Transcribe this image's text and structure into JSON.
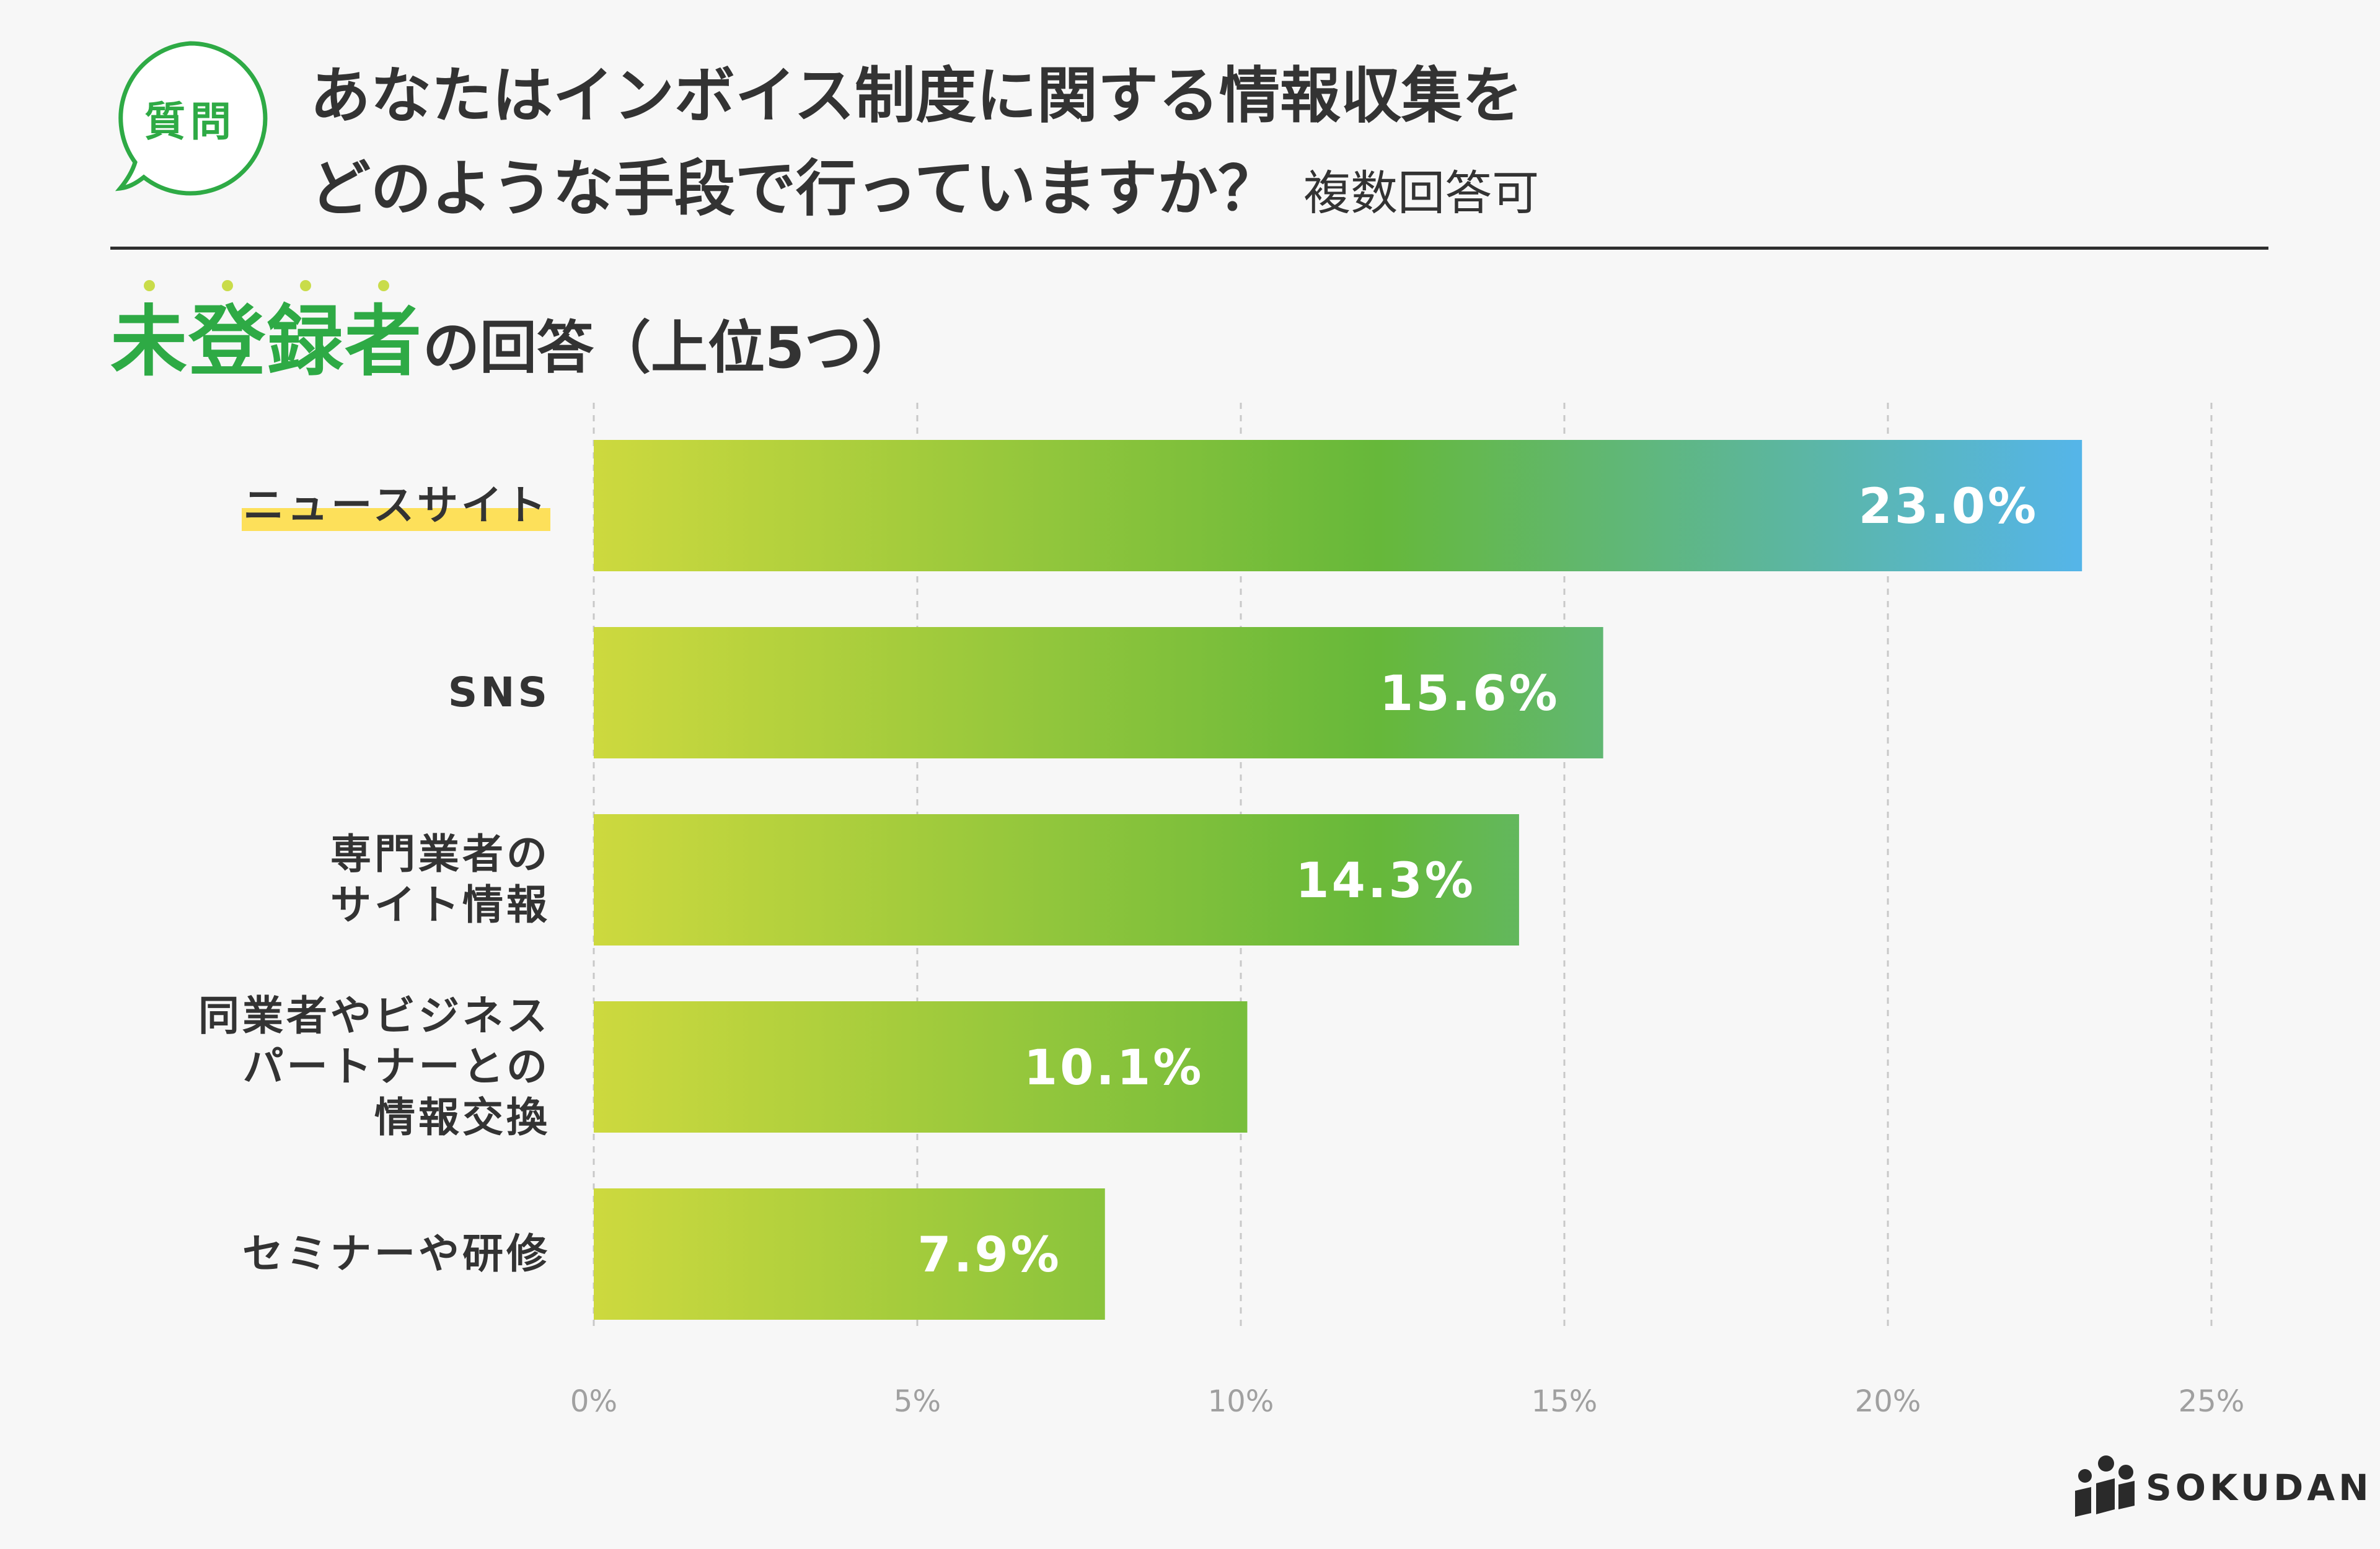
{
  "colors": {
    "accent_green": "#2eaa45",
    "text_dark": "#333333",
    "highlight": "#fde05a",
    "gradient_start": "#cdd93e",
    "gradient_mid": "#66b83a",
    "gradient_end": "#55b5e8"
  },
  "badge": {
    "text": "質問",
    "icon": "speech-bubble-icon"
  },
  "question": {
    "line1": "あなたはインボイス制度に関する情報収集を",
    "line2": "どのような手段で行っていますか？",
    "note": "複数回答可"
  },
  "subtitle": {
    "emphasis": "未登録者",
    "rest": "の回答（上位5つ）"
  },
  "chart_data": {
    "type": "bar",
    "orientation": "horizontal",
    "categories": [
      "ニュースサイト",
      "SNS",
      "専門業者の\nサイト情報",
      "同業者やビジネス\nパートナーとの\n情報交換",
      "セミナーや研修"
    ],
    "values": [
      23.0,
      15.6,
      14.3,
      10.1,
      7.9
    ],
    "value_labels": [
      "23.0%",
      "15.6%",
      "14.3%",
      "10.1%",
      "7.9%"
    ],
    "highlighted_category": "ニュースサイト",
    "x_ticks": [
      0,
      5,
      10,
      15,
      20,
      25
    ],
    "x_tick_labels": [
      "0%",
      "5%",
      "10%",
      "15%",
      "20%",
      "25%"
    ],
    "xlim": [
      0,
      25
    ],
    "grid": "vertical-dashed",
    "title": "未登録者の回答（上位5つ）",
    "xlabel": "",
    "ylabel": ""
  },
  "brand": {
    "name": "SOKUDAN",
    "icon": "sokudan-logo-icon"
  }
}
